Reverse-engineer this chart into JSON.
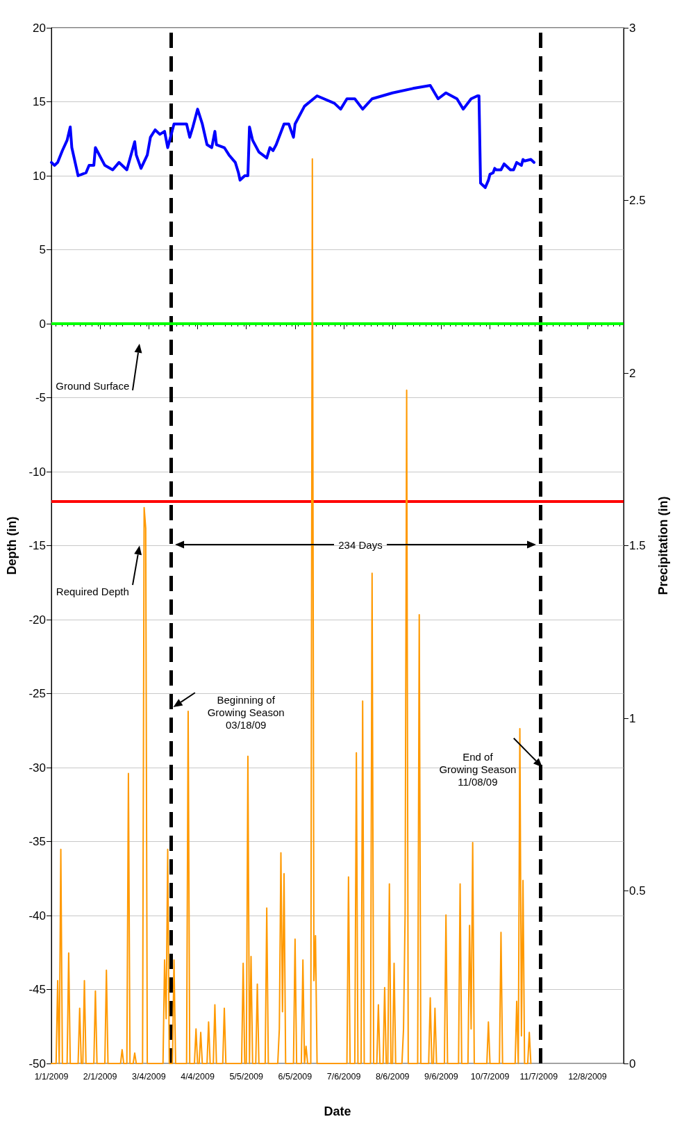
{
  "chart_data": {
    "type": "line",
    "xlabel": "Date",
    "ylabel": "Depth (in)",
    "y2label": "Precipitation (in)",
    "xlim": [
      "2009-01-01",
      "2009-12-31"
    ],
    "xticks": [
      {
        "value": "2009-01-01",
        "label": "1/1/2009"
      },
      {
        "value": "2009-02-01",
        "label": "2/1/2009"
      },
      {
        "value": "2009-03-04",
        "label": "3/4/2009"
      },
      {
        "value": "2009-04-04",
        "label": "4/4/2009"
      },
      {
        "value": "2009-05-05",
        "label": "5/5/2009"
      },
      {
        "value": "2009-06-05",
        "label": "6/5/2009"
      },
      {
        "value": "2009-07-06",
        "label": "7/6/2009"
      },
      {
        "value": "2009-08-06",
        "label": "8/6/2009"
      },
      {
        "value": "2009-09-06",
        "label": "9/6/2009"
      },
      {
        "value": "2009-10-07",
        "label": "10/7/2009"
      },
      {
        "value": "2009-11-07",
        "label": "11/7/2009"
      },
      {
        "value": "2009-12-08",
        "label": "12/8/2009"
      }
    ],
    "ylim": [
      -50,
      20
    ],
    "yticks": [
      -50,
      -45,
      -40,
      -35,
      -30,
      -25,
      -20,
      -15,
      -10,
      -5,
      0,
      5,
      10,
      15,
      20
    ],
    "y2lim": [
      0,
      3
    ],
    "y2ticks": [
      0,
      0.5,
      1,
      1.5,
      2,
      2.5,
      3
    ],
    "grid": "y",
    "marker": "none",
    "line_style": "solid",
    "series": [
      {
        "color": "#0000ff",
        "x": [
          "2009-01-01",
          "2009-01-03",
          "2009-01-05",
          "2009-01-08",
          "2009-01-11",
          "2009-01-13",
          "2009-01-14",
          "2009-01-18",
          "2009-01-23",
          "2009-01-25",
          "2009-01-28",
          "2009-01-29",
          "2009-02-04",
          "2009-02-09",
          "2009-02-13",
          "2009-02-18",
          "2009-02-23",
          "2009-02-24",
          "2009-02-27",
          "2009-03-03",
          "2009-03-05",
          "2009-03-08",
          "2009-03-11",
          "2009-03-14",
          "2009-03-16",
          "2009-03-20",
          "2009-03-28",
          "2009-03-30",
          "2009-04-01",
          "2009-04-04",
          "2009-04-07",
          "2009-04-10",
          "2009-04-13",
          "2009-04-15",
          "2009-04-16",
          "2009-04-21",
          "2009-04-24",
          "2009-04-28",
          "2009-04-30",
          "2009-05-01",
          "2009-05-04",
          "2009-05-06",
          "2009-05-07",
          "2009-05-09",
          "2009-05-13",
          "2009-05-18",
          "2009-05-20",
          "2009-05-22",
          "2009-05-24",
          "2009-05-29",
          "2009-06-01",
          "2009-06-04",
          "2009-06-05",
          "2009-06-11",
          "2009-06-19",
          "2009-06-30",
          "2009-07-04",
          "2009-07-08",
          "2009-07-13",
          "2009-07-18",
          "2009-07-24",
          "2009-08-06",
          "2009-08-19",
          "2009-08-30",
          "2009-09-04",
          "2009-09-09",
          "2009-09-16",
          "2009-09-20",
          "2009-09-25",
          "2009-09-29",
          "2009-09-30",
          "2009-10-01",
          "2009-10-02",
          "2009-10-04",
          "2009-10-06",
          "2009-10-07",
          "2009-10-09",
          "2009-10-10",
          "2009-10-11",
          "2009-10-14",
          "2009-10-16",
          "2009-10-20",
          "2009-10-22",
          "2009-10-24",
          "2009-10-27",
          "2009-10-28",
          "2009-10-29",
          "2009-11-02",
          "2009-11-04"
        ],
        "values": [
          10.9,
          10.7,
          10.9,
          11.7,
          12.4,
          13.3,
          11.9,
          10.0,
          10.2,
          10.7,
          10.7,
          11.9,
          10.7,
          10.4,
          10.9,
          10.4,
          12.3,
          11.4,
          10.5,
          11.4,
          12.6,
          13.1,
          12.8,
          13.0,
          11.9,
          13.5,
          13.5,
          12.6,
          13.3,
          14.5,
          13.5,
          12.1,
          11.9,
          13.0,
          12.1,
          11.9,
          11.4,
          10.9,
          10.2,
          9.7,
          10.0,
          10.0,
          13.3,
          12.4,
          11.6,
          11.2,
          11.9,
          11.7,
          12.1,
          13.5,
          13.5,
          12.6,
          13.5,
          14.7,
          15.4,
          14.9,
          14.5,
          15.2,
          15.2,
          14.5,
          15.2,
          15.6,
          15.9,
          16.1,
          15.2,
          15.6,
          15.2,
          14.5,
          15.2,
          15.4,
          15.4,
          9.5,
          9.4,
          9.2,
          9.7,
          10.1,
          10.2,
          10.5,
          10.4,
          10.4,
          10.8,
          10.4,
          10.4,
          10.9,
          10.7,
          11.1,
          11.0,
          11.1,
          10.9
        ]
      },
      {
        "color": "#ff9900",
        "axis": "y2",
        "x": [
          "2009-01-01",
          "2009-01-04",
          "2009-01-05",
          "2009-01-06",
          "2009-01-07",
          "2009-01-08",
          "2009-01-11",
          "2009-01-12",
          "2009-01-13",
          "2009-01-18",
          "2009-01-19",
          "2009-01-20",
          "2009-01-21",
          "2009-01-22",
          "2009-01-23",
          "2009-01-28",
          "2009-01-29",
          "2009-01-30",
          "2009-02-04",
          "2009-02-05",
          "2009-02-06",
          "2009-02-14",
          "2009-02-15",
          "2009-02-16",
          "2009-02-18",
          "2009-02-19",
          "2009-02-20",
          "2009-02-22",
          "2009-02-23",
          "2009-02-24",
          "2009-02-28",
          "2009-03-01",
          "2009-03-02",
          "2009-03-03",
          "2009-03-13",
          "2009-03-14",
          "2009-03-15",
          "2009-03-16",
          "2009-03-17",
          "2009-03-19",
          "2009-03-20",
          "2009-03-21",
          "2009-03-28",
          "2009-03-29",
          "2009-03-30",
          "2009-04-02",
          "2009-04-03",
          "2009-04-04",
          "2009-04-05",
          "2009-04-06",
          "2009-04-07",
          "2009-04-10",
          "2009-04-11",
          "2009-04-12",
          "2009-04-14",
          "2009-04-15",
          "2009-04-16",
          "2009-04-20",
          "2009-04-21",
          "2009-04-22",
          "2009-05-02",
          "2009-05-03",
          "2009-05-04",
          "2009-05-05",
          "2009-05-06",
          "2009-05-07",
          "2009-05-08",
          "2009-05-09",
          "2009-05-11",
          "2009-05-12",
          "2009-05-13",
          "2009-05-17",
          "2009-05-18",
          "2009-05-19",
          "2009-05-25",
          "2009-05-26",
          "2009-05-27",
          "2009-05-28",
          "2009-05-29",
          "2009-05-30",
          "2009-06-04",
          "2009-06-05",
          "2009-06-06",
          "2009-06-09",
          "2009-06-10",
          "2009-06-11",
          "2009-06-12",
          "2009-06-13",
          "2009-06-15",
          "2009-06-16",
          "2009-06-17",
          "2009-06-18",
          "2009-06-19",
          "2009-07-08",
          "2009-07-09",
          "2009-07-10",
          "2009-07-13",
          "2009-07-14",
          "2009-07-15",
          "2009-07-17",
          "2009-07-18",
          "2009-07-19",
          "2009-07-23",
          "2009-07-24",
          "2009-07-25",
          "2009-07-27",
          "2009-07-28",
          "2009-07-29",
          "2009-07-31",
          "2009-08-01",
          "2009-08-02",
          "2009-08-03",
          "2009-08-04",
          "2009-08-05",
          "2009-08-06",
          "2009-08-07",
          "2009-08-08",
          "2009-08-12",
          "2009-08-13",
          "2009-08-14",
          "2009-08-15",
          "2009-08-16",
          "2009-08-22",
          "2009-08-23",
          "2009-08-24",
          "2009-08-29",
          "2009-08-30",
          "2009-08-31",
          "2009-09-01",
          "2009-09-02",
          "2009-09-03",
          "2009-09-08",
          "2009-09-09",
          "2009-09-10",
          "2009-09-17",
          "2009-09-18",
          "2009-09-19",
          "2009-09-23",
          "2009-09-24",
          "2009-09-25",
          "2009-09-26",
          "2009-09-27",
          "2009-10-05",
          "2009-10-06",
          "2009-10-07",
          "2009-10-13",
          "2009-10-14",
          "2009-10-15",
          "2009-10-23",
          "2009-10-24",
          "2009-10-25",
          "2009-10-26",
          "2009-10-27",
          "2009-10-28",
          "2009-10-29",
          "2009-10-31",
          "2009-11-01",
          "2009-11-02"
        ],
        "values": [
          0,
          0,
          0.24,
          0,
          0.62,
          0,
          0,
          0.32,
          0,
          0,
          0.16,
          0,
          0,
          0.24,
          0,
          0,
          0.21,
          0,
          0,
          0.27,
          0,
          0,
          0.04,
          0,
          0,
          0.84,
          0,
          0,
          0.03,
          0,
          0,
          1.61,
          1.55,
          0,
          0,
          0.3,
          0.13,
          0.62,
          0,
          0,
          0.3,
          0,
          0,
          1.02,
          0,
          0,
          0.1,
          0,
          0,
          0.09,
          0,
          0,
          0.12,
          0,
          0,
          0.17,
          0,
          0,
          0.16,
          0,
          0,
          0.29,
          0,
          0,
          0.89,
          0,
          0.31,
          0,
          0,
          0.23,
          0,
          0,
          0.45,
          0,
          0,
          0.1,
          0.61,
          0.15,
          0.55,
          0,
          0,
          0.36,
          0,
          0,
          0.3,
          0,
          0.05,
          0,
          0,
          2.62,
          0.24,
          0.37,
          0,
          0,
          0.54,
          0,
          0,
          0.9,
          0,
          0,
          1.05,
          0,
          0,
          1.42,
          0,
          0,
          0.17,
          0,
          0,
          0.22,
          0,
          0,
          0.52,
          0,
          0,
          0.29,
          0,
          0,
          0.1,
          0.43,
          1.95,
          0,
          0,
          1.3,
          0,
          0,
          0.19,
          0,
          0,
          0.16,
          0,
          0,
          0.43,
          0,
          0,
          0.52,
          0,
          0,
          0.4,
          0.1,
          0.64,
          0,
          0,
          0.12,
          0,
          0,
          0.38,
          0,
          0,
          0.18,
          0,
          0.97,
          0.08,
          0.53,
          0,
          0,
          0.09,
          0
        ]
      }
    ],
    "ref_lines": [
      {
        "axis": "x",
        "value": "2009-03-18",
        "color": "#000000",
        "line_style": "dashed"
      },
      {
        "axis": "x",
        "value": "2009-11-08",
        "color": "#000000",
        "line_style": "dashed"
      },
      {
        "axis": "y",
        "value": 0,
        "color": "#00ff00",
        "line_style": "solid"
      },
      {
        "axis": "y",
        "value": -12,
        "color": "#ff0000",
        "line_style": "solid"
      }
    ],
    "annotations": [
      "Ground Surface",
      "Required Depth",
      "Beginning of\nGrowing Season\n03/18/09",
      "End of\nGrowing Season\n11/08/09",
      "234 Days"
    ]
  }
}
